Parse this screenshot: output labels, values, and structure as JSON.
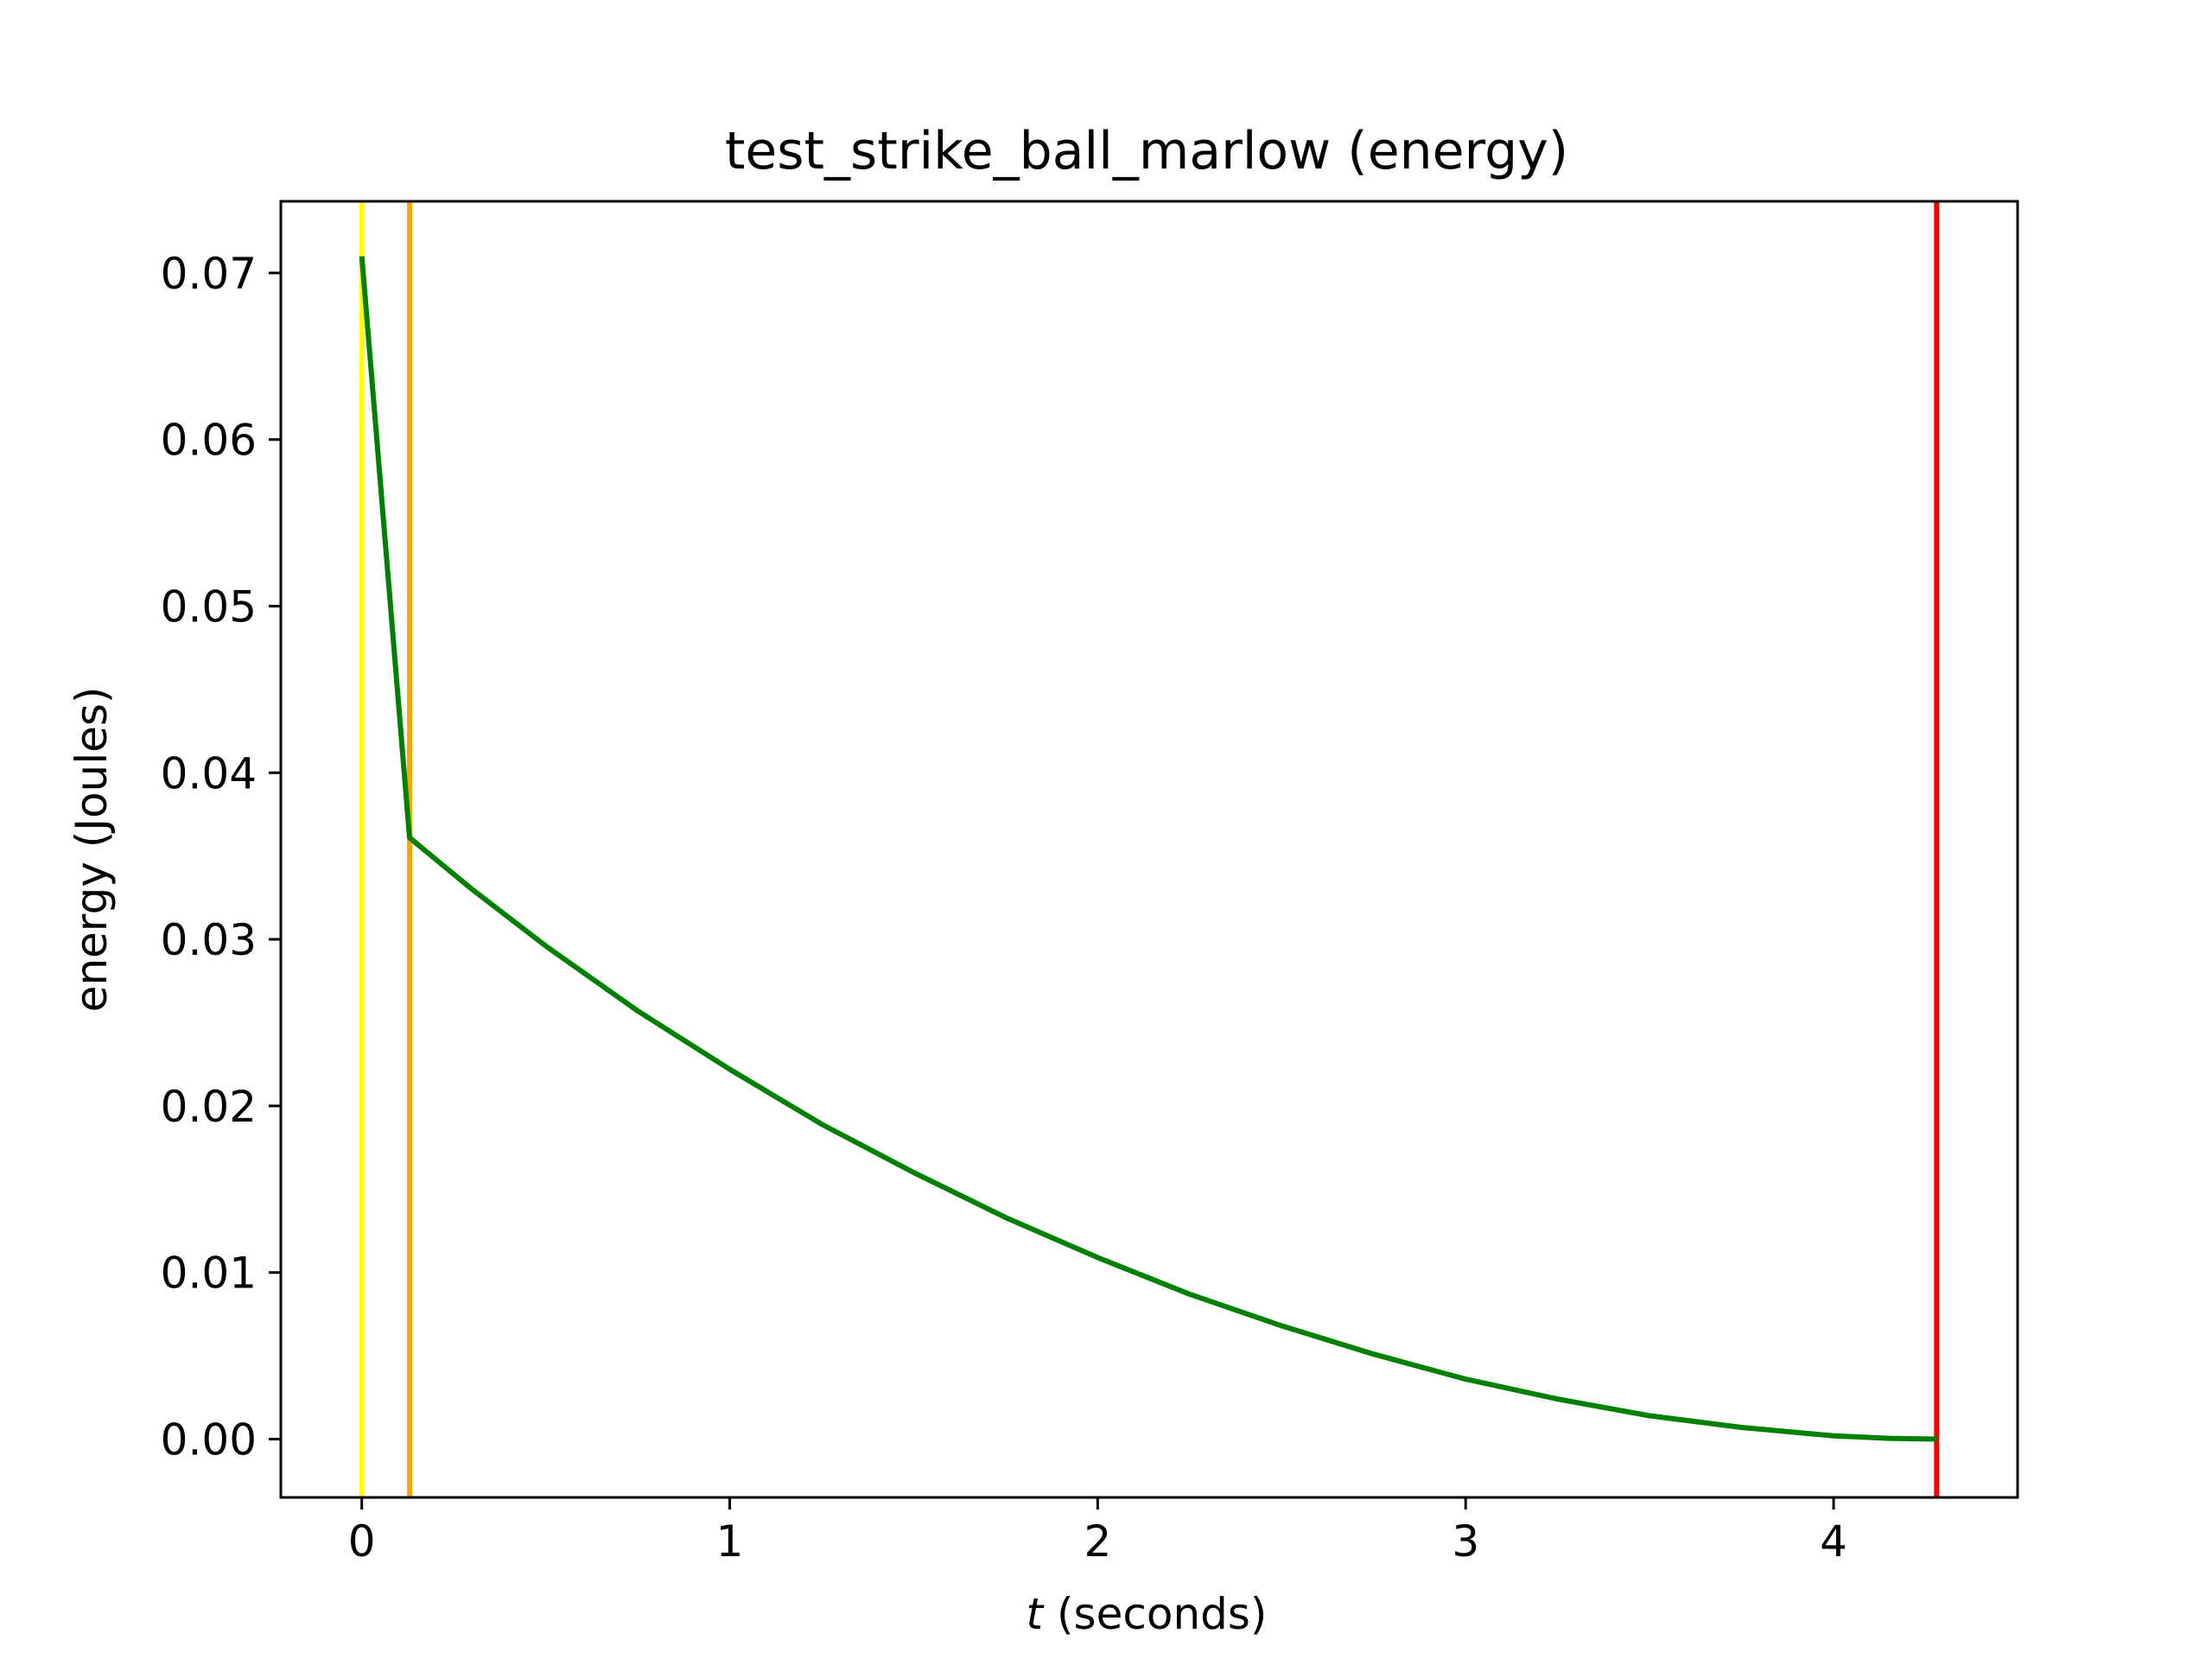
{
  "chart_data": {
    "type": "line",
    "title": "test_strike_ball_marlow (energy)",
    "xlabel_var": "t",
    "xlabel_rest": " (seconds)",
    "ylabel": "energy (Joules)",
    "xlim": [
      -0.22,
      4.5
    ],
    "ylim": [
      -0.0035,
      0.0743
    ],
    "xticks": [
      0,
      1,
      2,
      3,
      4
    ],
    "xtick_labels": [
      "0",
      "1",
      "2",
      "3",
      "4"
    ],
    "yticks": [
      0.0,
      0.01,
      0.02,
      0.03,
      0.04,
      0.05,
      0.06,
      0.07
    ],
    "ytick_labels": [
      "0.00",
      "0.01",
      "0.02",
      "0.03",
      "0.04",
      "0.05",
      "0.06",
      "0.07"
    ],
    "grid": false,
    "vlines": [
      {
        "x": 0.0,
        "color": "#ffff00"
      },
      {
        "x": 0.13,
        "color": "#ffa500"
      },
      {
        "x": 4.28,
        "color": "#ff0000"
      }
    ],
    "series": [
      {
        "color": "#008000",
        "x": [
          0.0,
          0.13,
          0.3,
          0.5,
          0.75,
          1.0,
          1.25,
          1.5,
          1.75,
          2.0,
          2.25,
          2.5,
          2.75,
          3.0,
          3.25,
          3.5,
          3.75,
          4.0,
          4.15,
          4.28
        ],
        "y": [
          0.071,
          0.0361,
          0.033,
          0.0296,
          0.0257,
          0.0222,
          0.0189,
          0.016,
          0.0133,
          0.0109,
          0.0087,
          0.0068,
          0.0051,
          0.0036,
          0.0024,
          0.0014,
          0.0007,
          0.0002,
          5e-05,
          0.0
        ]
      }
    ]
  }
}
